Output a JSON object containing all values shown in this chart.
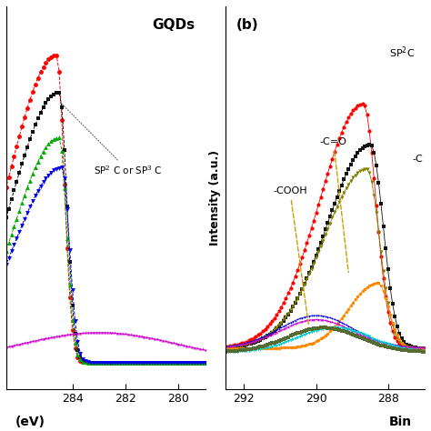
{
  "title_left": "GQDs",
  "label_b": "(b)",
  "xlabel_left": "(eV)",
  "ylabel": "Intensity (a.u.)",
  "xlabel_right": "Bin",
  "annotation_left": "SP$^2$ C or SP$^3$ C",
  "annotation_right_sp2": "SP$^2$C",
  "annotation_cooh": "-COOH",
  "annotation_co": "-C=O",
  "annotation_c": "-C",
  "background_color": "#ffffff",
  "left_panel": {
    "xlim": [
      286.5,
      279.0
    ],
    "xticks": [
      284,
      282,
      280
    ],
    "ylim": [
      -0.02,
      1.0
    ]
  },
  "right_panel": {
    "xlim": [
      292.5,
      287.0
    ],
    "xticks": [
      292,
      290,
      288
    ],
    "ylim": [
      -0.02,
      0.45
    ]
  }
}
